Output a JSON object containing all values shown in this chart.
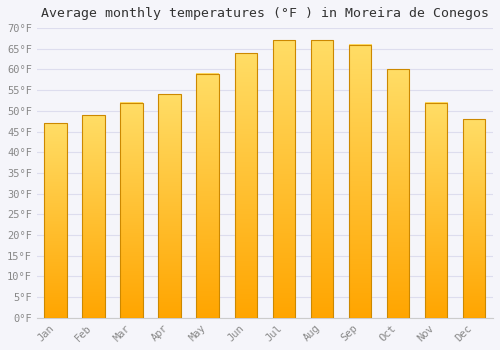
{
  "title": "Average monthly temperatures (°F ) in Moreira de Conegos",
  "months": [
    "Jan",
    "Feb",
    "Mar",
    "Apr",
    "May",
    "Jun",
    "Jul",
    "Aug",
    "Sep",
    "Oct",
    "Nov",
    "Dec"
  ],
  "values": [
    47,
    49,
    52,
    54,
    59,
    64,
    67,
    67,
    66,
    60,
    52,
    48
  ],
  "bar_color_top": "#FFD966",
  "bar_color_bottom": "#FFA500",
  "bar_edge_color": "#CC8800",
  "ylim": [
    0,
    70
  ],
  "ytick_step": 5,
  "background_color": "#F5F5FA",
  "plot_bg_color": "#F5F5FA",
  "grid_color": "#DDDDEE",
  "title_fontsize": 9.5,
  "tick_fontsize": 7.5,
  "font_family": "monospace"
}
